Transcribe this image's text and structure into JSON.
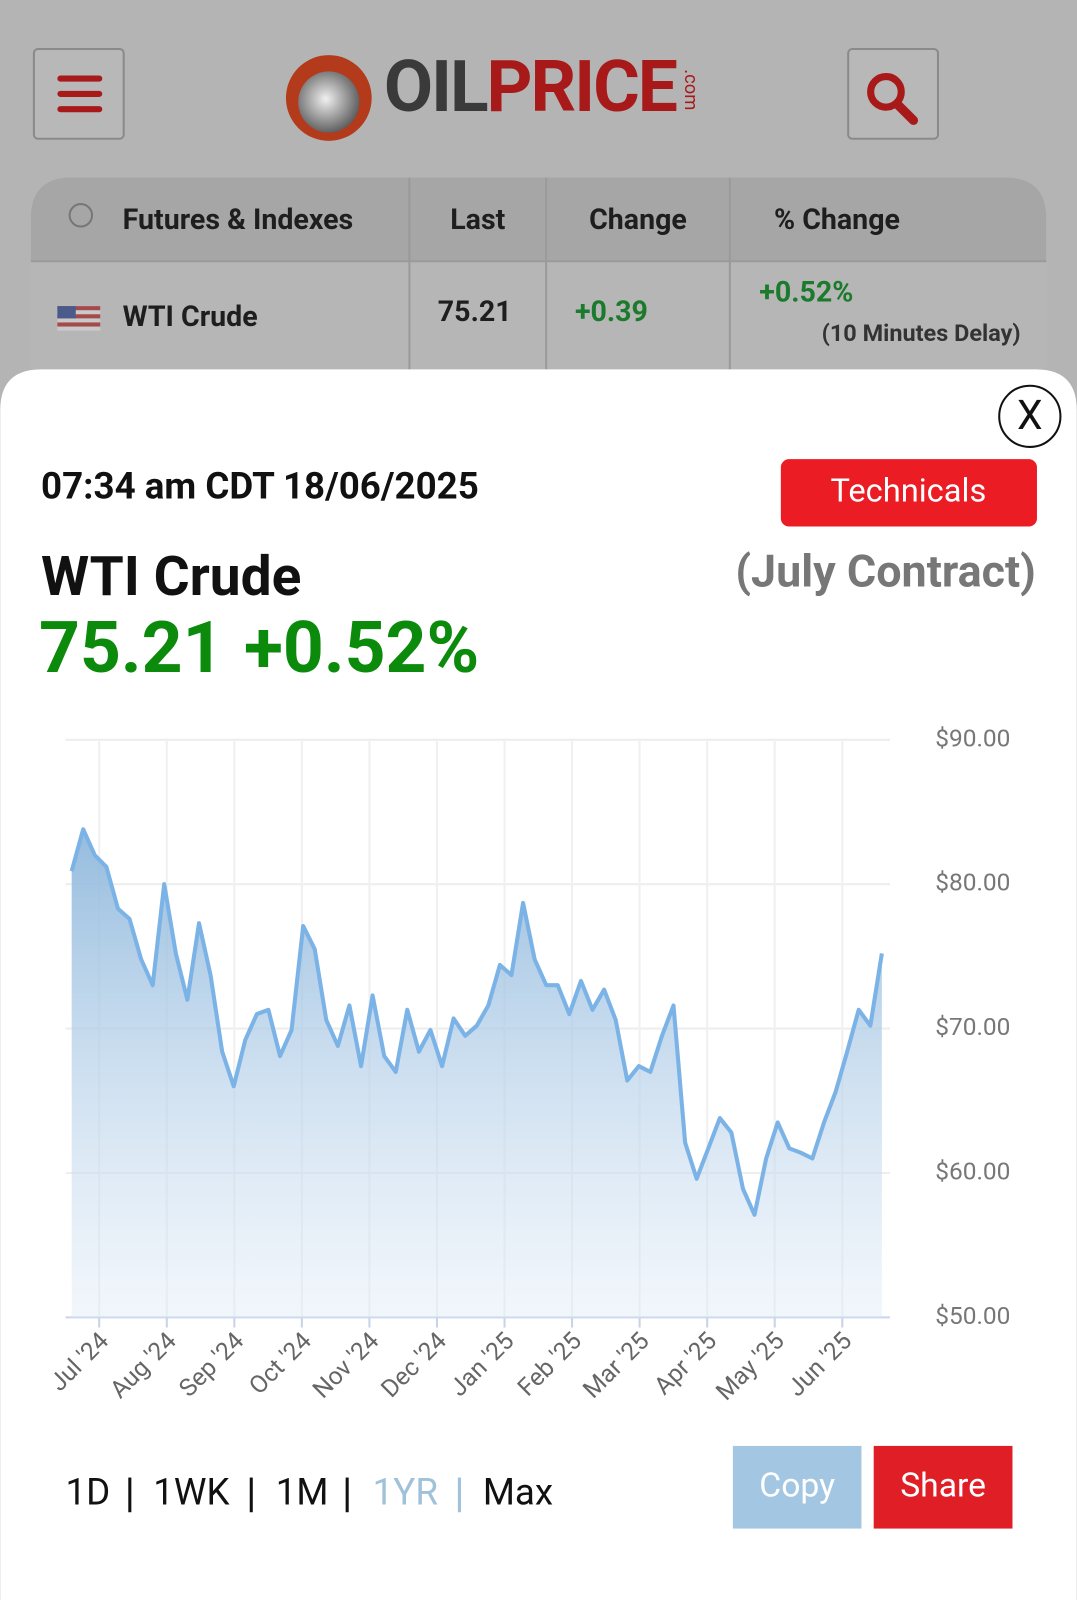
{
  "header": {
    "logo_dark": "OIL",
    "logo_red": "PRICE",
    "logo_suffix": ".com"
  },
  "table": {
    "columns": [
      "Futures & Indexes",
      "Last",
      "Change",
      "% Change"
    ],
    "rows": [
      [
        "WTI Crude",
        "75.21",
        "+0.39",
        "+0.52%"
      ]
    ],
    "note": "(10 Minutes Delay)"
  },
  "modal": {
    "close": "X",
    "timestamp": "07:34 am CDT 18/06/2025",
    "technicals": "Technicals",
    "name": "WTI Crude",
    "contract": "(July Contract)",
    "price": "75.21",
    "change": "+0.52%",
    "ranges": [
      "1D",
      "1WK",
      "1M",
      "1YR",
      "Max"
    ],
    "active_range": "1YR",
    "copy": "Copy",
    "share": "Share"
  },
  "chart_data": {
    "type": "area",
    "color": "#7cb3e6",
    "xticks": [
      "Jul '24",
      "Aug '24",
      "Sep '24",
      "Oct '24",
      "Nov '24",
      "Dec '24",
      "Jan '25",
      "Feb '25",
      "Mar '25",
      "Apr '25",
      "May '25",
      "Jun '25"
    ],
    "values": [
      80.9,
      83.8,
      82.0,
      81.2,
      78.3,
      77.6,
      74.8,
      73.0,
      80.0,
      75.2,
      72.0,
      77.3,
      73.7,
      68.4,
      66.0,
      69.2,
      71.0,
      71.3,
      68.1,
      69.9,
      77.1,
      75.5,
      70.6,
      68.8,
      71.6,
      67.4,
      72.3,
      68.1,
      67.0,
      71.3,
      68.4,
      69.9,
      67.4,
      70.7,
      69.5,
      70.2,
      71.6,
      74.4,
      73.7,
      78.7,
      74.8,
      73.0,
      73.0,
      71.0,
      73.3,
      71.3,
      72.7,
      70.6,
      66.4,
      67.4,
      67.0,
      69.5,
      71.6,
      62.1,
      59.6,
      61.7,
      63.8,
      62.8,
      58.9,
      57.1,
      61.0,
      63.5,
      61.7,
      61.4,
      61.0,
      63.5,
      65.6,
      68.4,
      71.3,
      70.2,
      75.2
    ],
    "ylim": [
      50,
      90
    ],
    "yticks": [
      {
        "value": 50,
        "label": "$50.00"
      },
      {
        "value": 60,
        "label": "$60.00"
      },
      {
        "value": 70,
        "label": "$70.00"
      },
      {
        "value": 80,
        "label": "$80.00"
      },
      {
        "value": 90,
        "label": "$90.00"
      }
    ],
    "grid": true
  }
}
